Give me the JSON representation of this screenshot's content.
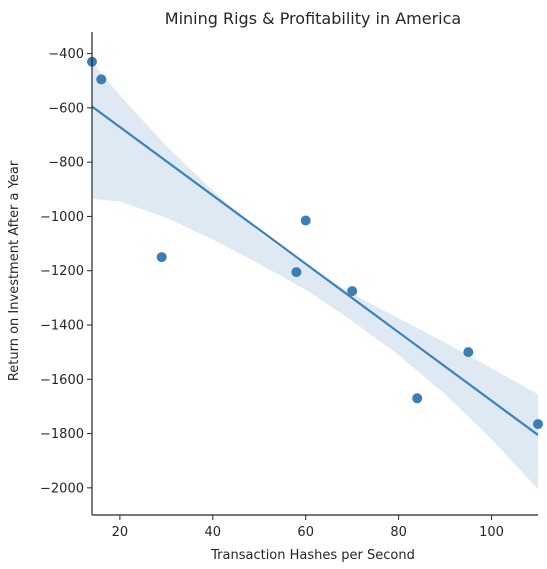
{
  "chart_data": {
    "type": "scatter",
    "title": "Mining Rigs & Profitability in America",
    "xlabel": "Transaction Hashes per Second",
    "ylabel": "Return on Investment After a Year",
    "xlim": [
      14,
      110
    ],
    "ylim": [
      -2100,
      -350
    ],
    "xticks": [
      20,
      40,
      60,
      80,
      100
    ],
    "yticks": [
      -400,
      -600,
      -800,
      -1000,
      -1200,
      -1400,
      -1600,
      -1800,
      -2000
    ],
    "grid": false,
    "colors": {
      "point": "#3b7db5",
      "line": "#3a82bd",
      "band": "#dbe7f3",
      "axis": "#262626"
    },
    "series": [
      {
        "points": [
          {
            "x": 14,
            "y": -430
          },
          {
            "x": 16,
            "y": -495
          },
          {
            "x": 29,
            "y": -1150
          },
          {
            "x": 58,
            "y": -1205
          },
          {
            "x": 60,
            "y": -1015
          },
          {
            "x": 70,
            "y": -1275
          },
          {
            "x": 84,
            "y": -1670
          },
          {
            "x": 95,
            "y": -1500
          },
          {
            "x": 110,
            "y": -1765
          }
        ]
      }
    ],
    "regression": {
      "x": [
        14,
        110
      ],
      "y": [
        -595,
        -1805
      ]
    },
    "confidence_band": {
      "x": [
        14,
        20,
        30,
        40,
        50,
        60,
        70,
        80,
        90,
        100,
        110
      ],
      "upper": [
        -430,
        -555,
        -740,
        -905,
        -1060,
        -1180,
        -1285,
        -1375,
        -1465,
        -1560,
        -1655
      ],
      "lower": [
        -935,
        -945,
        -1005,
        -1085,
        -1175,
        -1270,
        -1385,
        -1510,
        -1655,
        -1820,
        -2005
      ]
    }
  }
}
